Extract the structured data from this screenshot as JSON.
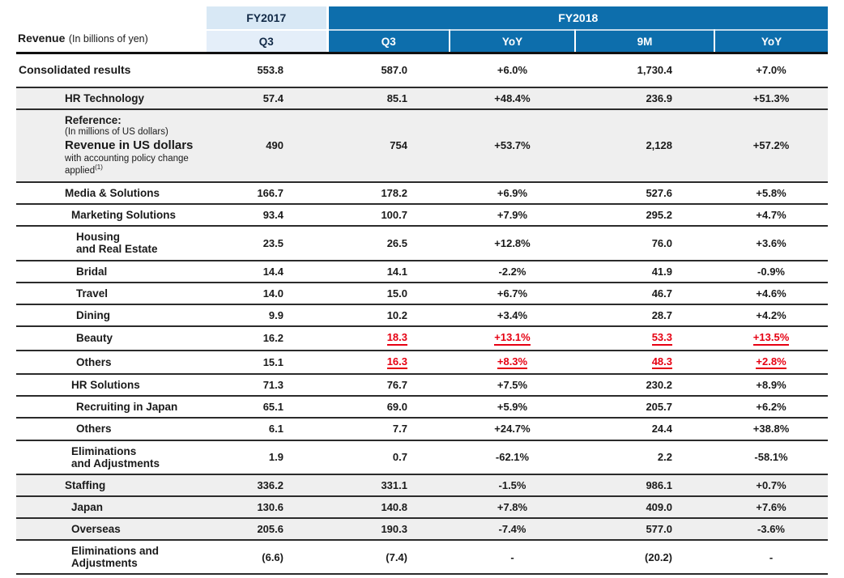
{
  "title": {
    "bold": "Revenue",
    "note": "(In billions of yen)"
  },
  "header": {
    "fy2017": {
      "label": "FY2017",
      "sub": "Q3"
    },
    "fy2018": {
      "label": "FY2018",
      "subs": [
        "Q3",
        "YoY",
        "9M",
        "YoY"
      ]
    }
  },
  "colors": {
    "fy2018_blue": "#0d6eac",
    "fy2017_light_blue": "#d8e8f5",
    "fy2017_sub_blue": "#e4eef9",
    "shaded_row_gray": "#efefef",
    "highlight_red": "#e60012",
    "rule_dark": "#2b2b2b"
  },
  "rows": [
    {
      "name": "consolidated-results",
      "level": 0,
      "shaded": false,
      "label_lines": [
        {
          "text": "Consolidated results",
          "style": "bold-lg"
        }
      ],
      "values": [
        {
          "text": "553.8",
          "red": false
        },
        {
          "text": "587.0",
          "red": false
        },
        {
          "text": "+6.0%",
          "red": false
        },
        {
          "text": "1,730.4",
          "red": false
        },
        {
          "text": "+7.0%",
          "red": false
        }
      ]
    },
    {
      "name": "hr-technology",
      "level": 1,
      "shaded": true,
      "label_lines": [
        {
          "text": "HR Technology",
          "style": "bold-md"
        }
      ],
      "values": [
        {
          "text": "57.4",
          "red": false
        },
        {
          "text": "85.1",
          "red": false
        },
        {
          "text": "+48.4%",
          "red": false
        },
        {
          "text": "236.9",
          "red": false
        },
        {
          "text": "+51.3%",
          "red": false
        }
      ]
    },
    {
      "name": "reference-revenue-usd",
      "level": 1,
      "shaded": true,
      "label_lines": [
        {
          "text": "Reference:",
          "style": "bold-md"
        },
        {
          "text": "(In millions of US dollars)",
          "style": "small"
        },
        {
          "text": "Revenue in US dollars",
          "style": "ref-big"
        },
        {
          "text": "with accounting policy change",
          "style": "small"
        },
        {
          "text": "applied",
          "style": "small",
          "sup": "(1)"
        }
      ],
      "values": [
        {
          "text": "490",
          "red": false
        },
        {
          "text": "754",
          "red": false
        },
        {
          "text": "+53.7%",
          "red": false
        },
        {
          "text": "2,128",
          "red": false
        },
        {
          "text": "+57.2%",
          "red": false
        }
      ]
    },
    {
      "name": "media-and-solutions",
      "level": 1,
      "shaded": false,
      "label_lines": [
        {
          "text": "Media & Solutions",
          "style": "bold-md"
        }
      ],
      "values": [
        {
          "text": "166.7",
          "red": false
        },
        {
          "text": "178.2",
          "red": false
        },
        {
          "text": "+6.9%",
          "red": false
        },
        {
          "text": "527.6",
          "red": false
        },
        {
          "text": "+5.8%",
          "red": false
        }
      ]
    },
    {
      "name": "marketing-solutions",
      "level": 2,
      "shaded": false,
      "label_lines": [
        {
          "text": "Marketing Solutions",
          "style": "bold-md"
        }
      ],
      "values": [
        {
          "text": "93.4",
          "red": false
        },
        {
          "text": "100.7",
          "red": false
        },
        {
          "text": "+7.9%",
          "red": false
        },
        {
          "text": "295.2",
          "red": false
        },
        {
          "text": "+4.7%",
          "red": false
        }
      ]
    },
    {
      "name": "housing-and-real-estate",
      "level": 3,
      "shaded": false,
      "label_lines": [
        {
          "text": "Housing",
          "style": "bold-md"
        },
        {
          "text": "and Real Estate",
          "style": "bold-md"
        }
      ],
      "values": [
        {
          "text": "23.5",
          "red": false
        },
        {
          "text": "26.5",
          "red": false
        },
        {
          "text": "+12.8%",
          "red": false
        },
        {
          "text": "76.0",
          "red": false
        },
        {
          "text": "+3.6%",
          "red": false
        }
      ]
    },
    {
      "name": "bridal",
      "level": 3,
      "shaded": false,
      "label_lines": [
        {
          "text": "Bridal",
          "style": "bold-md"
        }
      ],
      "values": [
        {
          "text": "14.4",
          "red": false
        },
        {
          "text": "14.1",
          "red": false
        },
        {
          "text": "-2.2%",
          "red": false
        },
        {
          "text": "41.9",
          "red": false
        },
        {
          "text": "-0.9%",
          "red": false
        }
      ]
    },
    {
      "name": "travel",
      "level": 3,
      "shaded": false,
      "label_lines": [
        {
          "text": "Travel",
          "style": "bold-md"
        }
      ],
      "values": [
        {
          "text": "14.0",
          "red": false
        },
        {
          "text": "15.0",
          "red": false
        },
        {
          "text": "+6.7%",
          "red": false
        },
        {
          "text": "46.7",
          "red": false
        },
        {
          "text": "+4.6%",
          "red": false
        }
      ]
    },
    {
      "name": "dining",
      "level": 3,
      "shaded": false,
      "label_lines": [
        {
          "text": "Dining",
          "style": "bold-md"
        }
      ],
      "values": [
        {
          "text": "9.9",
          "red": false
        },
        {
          "text": "10.2",
          "red": false
        },
        {
          "text": "+3.4%",
          "red": false
        },
        {
          "text": "28.7",
          "red": false
        },
        {
          "text": "+4.2%",
          "red": false
        }
      ]
    },
    {
      "name": "beauty",
      "level": 3,
      "shaded": false,
      "label_lines": [
        {
          "text": "Beauty",
          "style": "bold-md"
        }
      ],
      "values": [
        {
          "text": "16.2",
          "red": false
        },
        {
          "text": "18.3",
          "red": true
        },
        {
          "text": "+13.1%",
          "red": true
        },
        {
          "text": "53.3",
          "red": true
        },
        {
          "text": "+13.5%",
          "red": true
        }
      ]
    },
    {
      "name": "media-others",
      "level": 3,
      "shaded": false,
      "label_lines": [
        {
          "text": "Others",
          "style": "bold-md"
        }
      ],
      "values": [
        {
          "text": "15.1",
          "red": false
        },
        {
          "text": "16.3",
          "red": true
        },
        {
          "text": "+8.3%",
          "red": true
        },
        {
          "text": "48.3",
          "red": true
        },
        {
          "text": "+2.8%",
          "red": true
        }
      ]
    },
    {
      "name": "hr-solutions",
      "level": 2,
      "shaded": false,
      "label_lines": [
        {
          "text": "HR Solutions",
          "style": "bold-md"
        }
      ],
      "values": [
        {
          "text": "71.3",
          "red": false
        },
        {
          "text": "76.7",
          "red": false
        },
        {
          "text": "+7.5%",
          "red": false
        },
        {
          "text": "230.2",
          "red": false
        },
        {
          "text": "+8.9%",
          "red": false
        }
      ]
    },
    {
      "name": "recruiting-in-japan",
      "level": 3,
      "shaded": false,
      "label_lines": [
        {
          "text": "Recruiting in Japan",
          "style": "bold-md"
        }
      ],
      "values": [
        {
          "text": "65.1",
          "red": false
        },
        {
          "text": "69.0",
          "red": false
        },
        {
          "text": "+5.9%",
          "red": false
        },
        {
          "text": "205.7",
          "red": false
        },
        {
          "text": "+6.2%",
          "red": false
        }
      ]
    },
    {
      "name": "hr-others",
      "level": 3,
      "shaded": false,
      "label_lines": [
        {
          "text": "Others",
          "style": "bold-md"
        }
      ],
      "values": [
        {
          "text": "6.1",
          "red": false
        },
        {
          "text": "7.7",
          "red": false
        },
        {
          "text": "+24.7%",
          "red": false
        },
        {
          "text": "24.4",
          "red": false
        },
        {
          "text": "+38.8%",
          "red": false
        }
      ]
    },
    {
      "name": "media-eliminations-adjustments",
      "level": 2,
      "shaded": false,
      "label_lines": [
        {
          "text": "Eliminations",
          "style": "bold-md"
        },
        {
          "text": "and Adjustments",
          "style": "bold-md"
        }
      ],
      "values": [
        {
          "text": "1.9",
          "red": false
        },
        {
          "text": "0.7",
          "red": false
        },
        {
          "text": "-62.1%",
          "red": false
        },
        {
          "text": "2.2",
          "red": false
        },
        {
          "text": "-58.1%",
          "red": false
        }
      ]
    },
    {
      "name": "staffing",
      "level": 1,
      "shaded": true,
      "label_lines": [
        {
          "text": "Staffing",
          "style": "bold-md"
        }
      ],
      "values": [
        {
          "text": "336.2",
          "red": false
        },
        {
          "text": "331.1",
          "red": false
        },
        {
          "text": "-1.5%",
          "red": false
        },
        {
          "text": "986.1",
          "red": false
        },
        {
          "text": "+0.7%",
          "red": false
        }
      ]
    },
    {
      "name": "staffing-japan",
      "level": 2,
      "shaded": true,
      "label_lines": [
        {
          "text": "Japan",
          "style": "bold-md"
        }
      ],
      "values": [
        {
          "text": "130.6",
          "red": false
        },
        {
          "text": "140.8",
          "red": false
        },
        {
          "text": "+7.8%",
          "red": false
        },
        {
          "text": "409.0",
          "red": false
        },
        {
          "text": "+7.6%",
          "red": false
        }
      ]
    },
    {
      "name": "staffing-overseas",
      "level": 2,
      "shaded": true,
      "label_lines": [
        {
          "text": "Overseas",
          "style": "bold-md"
        }
      ],
      "values": [
        {
          "text": "205.6",
          "red": false
        },
        {
          "text": "190.3",
          "red": false
        },
        {
          "text": "-7.4%",
          "red": false
        },
        {
          "text": "577.0",
          "red": false
        },
        {
          "text": "-3.6%",
          "red": false
        }
      ]
    },
    {
      "name": "total-eliminations-adjustments",
      "level": 2,
      "shaded": false,
      "label_lines": [
        {
          "text": "Eliminations and",
          "style": "bold-md"
        },
        {
          "text": "Adjustments",
          "style": "bold-md"
        }
      ],
      "values": [
        {
          "text": "(6.6)",
          "red": false
        },
        {
          "text": "(7.4)",
          "red": false
        },
        {
          "text": "-",
          "red": false
        },
        {
          "text": "(20.2)",
          "red": false
        },
        {
          "text": "-",
          "red": false
        }
      ]
    }
  ]
}
